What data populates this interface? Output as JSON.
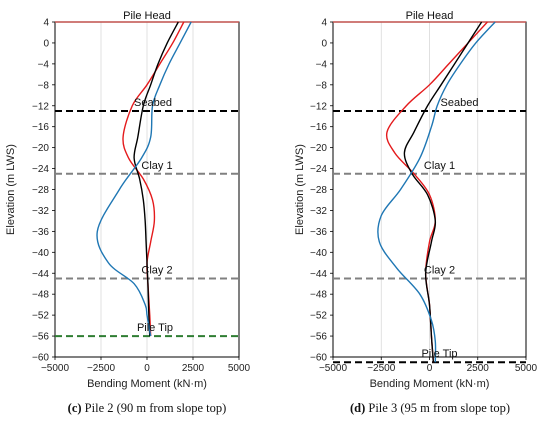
{
  "chart_data": [
    {
      "type": "line",
      "caption_letter": "(c)",
      "caption_text": " Pile 2 (90 m from slope top)",
      "xlabel": "Bending Moment (kN·m)",
      "ylabel": "Elevation (m LWS)",
      "xlim": [
        -5000,
        5000
      ],
      "ylim": [
        -60,
        4
      ],
      "xticks": [
        -5000,
        -2500,
        0,
        2500,
        5000
      ],
      "yticks": [
        4,
        0,
        -4,
        -8,
        -12,
        -16,
        -20,
        -24,
        -28,
        -32,
        -36,
        -40,
        -44,
        -48,
        -52,
        -56,
        -60
      ],
      "grid": "vertical",
      "levels": [
        {
          "label": "Pile Head",
          "elevation": 4,
          "color": "#c0504d"
        },
        {
          "label": "Seabed",
          "elevation": -13,
          "color": "#000000"
        },
        {
          "label": "Clay 1",
          "elevation": -25,
          "color": "#808080"
        },
        {
          "label": "Clay 2",
          "elevation": -45,
          "color": "#808080"
        },
        {
          "label": "Pile Tip",
          "elevation": -56,
          "color": "#2e7d32"
        }
      ],
      "series": [
        {
          "color": "#e41a1c",
          "x": [
            2000,
            1400,
            700,
            0,
            -800,
            -1300,
            -1000,
            -200,
            300,
            400,
            200,
            0,
            50,
            150,
            200
          ],
          "y": [
            4,
            0,
            -4,
            -8,
            -12,
            -18,
            -22,
            -26,
            -30,
            -34,
            -38,
            -42,
            -46,
            -52,
            -56
          ]
        },
        {
          "color": "#000000",
          "x": [
            1700,
            1100,
            600,
            200,
            -200,
            -500,
            -700,
            -400,
            -200,
            -100,
            -50,
            0,
            50,
            100,
            150
          ],
          "y": [
            4,
            0,
            -4,
            -8,
            -12,
            -18,
            -22,
            -26,
            -30,
            -34,
            -38,
            -42,
            -46,
            -52,
            -56
          ]
        },
        {
          "color": "#1f77b4",
          "x": [
            2400,
            1800,
            1200,
            700,
            300,
            200,
            -300,
            -1500,
            -2700,
            -2100,
            -700,
            -100,
            0,
            100,
            200
          ],
          "y": [
            4,
            0,
            -4,
            -8,
            -12,
            -18,
            -22,
            -28,
            -36,
            -42,
            -46,
            -50,
            -52,
            -54,
            -56
          ]
        }
      ]
    },
    {
      "type": "line",
      "caption_letter": "(d)",
      "caption_text": " Pile 3 (95 m from slope top)",
      "xlabel": "Bending Moment (kN·m)",
      "ylabel": "Elevation (m LWS)",
      "xlim": [
        -5000,
        5000
      ],
      "ylim": [
        -60,
        4
      ],
      "xticks": [
        -5000,
        -2500,
        0,
        2500,
        5000
      ],
      "yticks": [
        4,
        0,
        -4,
        -8,
        -12,
        -16,
        -20,
        -24,
        -28,
        -32,
        -36,
        -40,
        -44,
        -48,
        -52,
        -56,
        -60
      ],
      "grid": "vertical",
      "levels": [
        {
          "label": "Pile Head",
          "elevation": 4,
          "color": "#c0504d"
        },
        {
          "label": "Seabed",
          "elevation": -13,
          "color": "#000000"
        },
        {
          "label": "Clay 1",
          "elevation": -25,
          "color": "#808080"
        },
        {
          "label": "Clay 2",
          "elevation": -45,
          "color": "#808080"
        },
        {
          "label": "Pile Tip",
          "elevation": -61,
          "color": "#000000"
        }
      ],
      "series": [
        {
          "color": "#e41a1c",
          "x": [
            3000,
            2000,
            1000,
            0,
            -1200,
            -2200,
            -1800,
            -800,
            0,
            300,
            0,
            -200,
            0,
            100,
            200
          ],
          "y": [
            4,
            0,
            -4,
            -8,
            -12,
            -17,
            -21,
            -25,
            -29,
            -34,
            -38,
            -44,
            -50,
            -56,
            -61
          ]
        },
        {
          "color": "#000000",
          "x": [
            2700,
            2000,
            1300,
            600,
            -100,
            -800,
            -1300,
            -900,
            -100,
            300,
            100,
            -200,
            0,
            100,
            200
          ],
          "y": [
            4,
            0,
            -4,
            -8,
            -12,
            -17,
            -21,
            -25,
            -29,
            -34,
            -38,
            -44,
            -50,
            -56,
            -61
          ]
        },
        {
          "color": "#1f77b4",
          "x": [
            3400,
            2400,
            1600,
            900,
            400,
            100,
            -500,
            -1500,
            -2500,
            -2600,
            -1700,
            -500,
            100,
            300,
            300
          ],
          "y": [
            4,
            0,
            -4,
            -8,
            -12,
            -16,
            -22,
            -28,
            -33,
            -38,
            -43,
            -48,
            -53,
            -57,
            -61
          ]
        }
      ]
    }
  ]
}
